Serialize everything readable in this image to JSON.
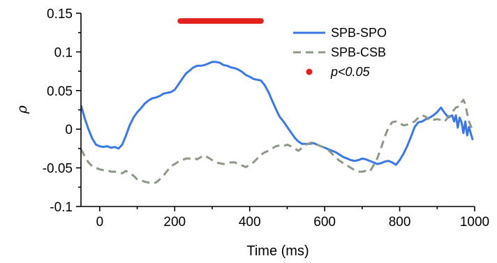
{
  "chart_data": {
    "type": "line",
    "xlabel": "Time (ms)",
    "ylabel": "ρ",
    "xlim": [
      -50,
      1000
    ],
    "ylim": [
      -0.1,
      0.15
    ],
    "x_ticks": [
      0,
      200,
      400,
      600,
      800,
      1000
    ],
    "x_tick_labels": [
      "0",
      "200",
      "400",
      "600",
      "800",
      "1000"
    ],
    "y_ticks": [
      -0.1,
      -0.05,
      0,
      0.05,
      0.1,
      0.15
    ],
    "y_tick_labels": [
      "-0.1",
      "-0.05",
      "0",
      "0.05",
      "0.1",
      "0.15"
    ],
    "grid": false,
    "legend_position": "top-right",
    "significance_bar": {
      "label": "p<0.05",
      "color": "#e3201b",
      "x_range": [
        215,
        430
      ],
      "y": 0.14
    },
    "series": [
      {
        "name": "SPB-SPO",
        "color": "#3b78e7",
        "style": "solid",
        "x": [
          -50,
          -40,
          -30,
          -20,
          -10,
          0,
          10,
          20,
          30,
          40,
          50,
          60,
          70,
          80,
          90,
          100,
          110,
          120,
          130,
          140,
          150,
          160,
          170,
          180,
          190,
          200,
          210,
          220,
          230,
          240,
          250,
          260,
          270,
          280,
          290,
          300,
          310,
          320,
          330,
          340,
          350,
          360,
          370,
          380,
          390,
          400,
          410,
          420,
          430,
          440,
          450,
          460,
          470,
          480,
          490,
          500,
          510,
          520,
          530,
          540,
          550,
          560,
          570,
          580,
          590,
          600,
          610,
          620,
          630,
          640,
          650,
          660,
          670,
          680,
          690,
          700,
          710,
          720,
          730,
          740,
          750,
          760,
          770,
          780,
          790,
          800,
          810,
          820,
          830,
          840,
          850,
          860,
          870,
          880,
          890,
          900,
          910,
          920,
          930,
          940,
          945,
          950,
          955,
          960,
          965,
          970,
          975,
          980,
          985,
          990,
          995
        ],
        "values": [
          0.031,
          0.014,
          0.0,
          -0.012,
          -0.02,
          -0.022,
          -0.023,
          -0.022,
          -0.024,
          -0.023,
          -0.025,
          -0.02,
          -0.008,
          0.005,
          0.015,
          0.022,
          0.027,
          0.033,
          0.037,
          0.04,
          0.041,
          0.043,
          0.046,
          0.047,
          0.048,
          0.051,
          0.058,
          0.065,
          0.072,
          0.076,
          0.08,
          0.082,
          0.082,
          0.083,
          0.085,
          0.087,
          0.087,
          0.086,
          0.083,
          0.082,
          0.08,
          0.079,
          0.077,
          0.074,
          0.07,
          0.068,
          0.065,
          0.064,
          0.063,
          0.057,
          0.048,
          0.037,
          0.026,
          0.016,
          0.01,
          0.003,
          -0.004,
          -0.011,
          -0.016,
          -0.019,
          -0.019,
          -0.019,
          -0.018,
          -0.02,
          -0.022,
          -0.024,
          -0.026,
          -0.028,
          -0.03,
          -0.033,
          -0.036,
          -0.038,
          -0.04,
          -0.041,
          -0.04,
          -0.038,
          -0.039,
          -0.041,
          -0.043,
          -0.045,
          -0.044,
          -0.042,
          -0.041,
          -0.043,
          -0.046,
          -0.04,
          -0.032,
          -0.022,
          -0.01,
          0.003,
          0.009,
          0.01,
          0.013,
          0.015,
          0.018,
          0.022,
          0.028,
          0.021,
          0.015,
          0.018,
          0.01,
          0.018,
          0.002,
          0.015,
          0.009,
          -0.005,
          0.01,
          -0.008,
          0.003,
          -0.006,
          -0.014
        ]
      },
      {
        "name": "SPB-CSB",
        "color": "#8c9986",
        "style": "dashed",
        "x": [
          -50,
          -40,
          -30,
          -20,
          -10,
          0,
          10,
          20,
          30,
          40,
          50,
          60,
          70,
          80,
          90,
          100,
          110,
          120,
          130,
          140,
          150,
          160,
          170,
          180,
          190,
          200,
          210,
          220,
          230,
          240,
          250,
          260,
          270,
          280,
          290,
          300,
          310,
          320,
          330,
          340,
          350,
          360,
          370,
          380,
          390,
          400,
          410,
          420,
          430,
          440,
          450,
          460,
          470,
          480,
          490,
          500,
          510,
          520,
          530,
          540,
          550,
          560,
          570,
          580,
          590,
          600,
          610,
          620,
          630,
          640,
          650,
          660,
          670,
          680,
          690,
          700,
          710,
          720,
          730,
          740,
          750,
          760,
          770,
          780,
          790,
          800,
          810,
          820,
          830,
          840,
          850,
          860,
          870,
          880,
          890,
          900,
          910,
          920,
          930,
          940,
          950,
          960,
          965,
          970,
          975,
          980,
          985,
          990,
          995
        ],
        "values": [
          -0.026,
          -0.035,
          -0.043,
          -0.048,
          -0.05,
          -0.052,
          -0.053,
          -0.053,
          -0.055,
          -0.055,
          -0.056,
          -0.057,
          -0.054,
          -0.057,
          -0.06,
          -0.065,
          -0.066,
          -0.068,
          -0.069,
          -0.07,
          -0.069,
          -0.065,
          -0.06,
          -0.054,
          -0.048,
          -0.045,
          -0.042,
          -0.04,
          -0.038,
          -0.038,
          -0.037,
          -0.039,
          -0.036,
          -0.034,
          -0.037,
          -0.04,
          -0.043,
          -0.044,
          -0.045,
          -0.044,
          -0.043,
          -0.043,
          -0.045,
          -0.047,
          -0.049,
          -0.046,
          -0.043,
          -0.038,
          -0.033,
          -0.03,
          -0.028,
          -0.025,
          -0.022,
          -0.021,
          -0.022,
          -0.02,
          -0.022,
          -0.025,
          -0.028,
          -0.024,
          -0.02,
          -0.018,
          -0.017,
          -0.02,
          -0.022,
          -0.024,
          -0.027,
          -0.032,
          -0.037,
          -0.041,
          -0.044,
          -0.047,
          -0.05,
          -0.053,
          -0.055,
          -0.055,
          -0.054,
          -0.055,
          -0.047,
          -0.038,
          -0.025,
          -0.01,
          0.002,
          0.009,
          0.01,
          0.008,
          0.005,
          0.006,
          0.008,
          0.01,
          0.015,
          0.018,
          0.016,
          0.011,
          0.012,
          0.013,
          0.012,
          0.01,
          0.016,
          0.022,
          0.028,
          0.03,
          0.035,
          0.038,
          0.032,
          0.02,
          0.01,
          0.004,
          -0.004
        ]
      }
    ]
  }
}
